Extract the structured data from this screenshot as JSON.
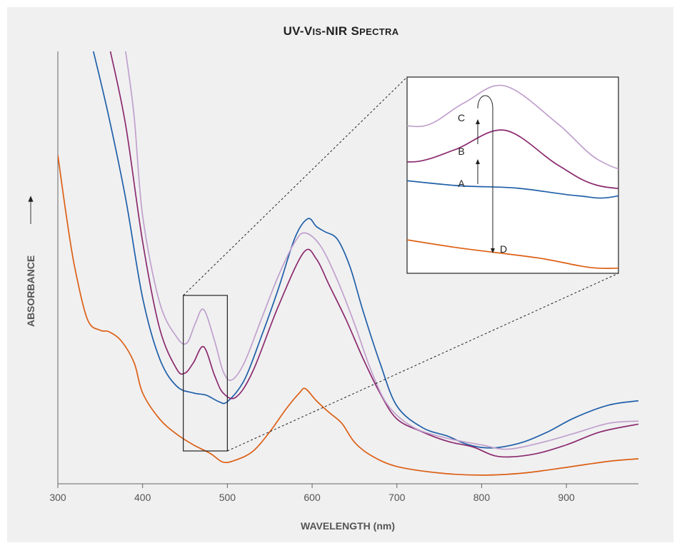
{
  "chart_data": {
    "type": "line",
    "title_main": "UV-V",
    "title_sc1": "IS",
    "title_mid": "-NIR S",
    "title_sc2": "PECTRA",
    "xlabel": "WAVELENGTH",
    "xlabel_unit": "(nm)",
    "ylabel": "ABSORBANCE",
    "xlim": [
      300,
      985
    ],
    "ylim": [
      0,
      1
    ],
    "x_ticks": [
      300,
      400,
      500,
      600,
      700,
      800,
      900
    ],
    "grid": false,
    "colors": {
      "A": "#1f5fa8",
      "B": "#8b2a6e",
      "C": "#c0a0cc",
      "D": "#dc5f14"
    },
    "series": [
      {
        "name": "A",
        "x": [
          342,
          360,
          380,
          400,
          420,
          440,
          460,
          475,
          490,
          500,
          520,
          540,
          560,
          580,
          595,
          605,
          615,
          630,
          645,
          660,
          680,
          700,
          730,
          760,
          780,
          800,
          820,
          850,
          880,
          910,
          950,
          985
        ],
        "y": [
          1.0,
          0.85,
          0.66,
          0.43,
          0.29,
          0.226,
          0.21,
          0.205,
          0.19,
          0.19,
          0.24,
          0.34,
          0.45,
          0.57,
          0.613,
          0.595,
          0.583,
          0.565,
          0.5,
          0.4,
          0.28,
          0.18,
          0.13,
          0.11,
          0.093,
          0.084,
          0.084,
          0.097,
          0.122,
          0.153,
          0.182,
          0.192
        ]
      },
      {
        "name": "B",
        "x": [
          362,
          380,
          400,
          420,
          440,
          450,
          460,
          472,
          485,
          495,
          510,
          530,
          560,
          590,
          605,
          620,
          640,
          660,
          680,
          700,
          730,
          760,
          790,
          820,
          860,
          900,
          940,
          985
        ],
        "y": [
          1.0,
          0.83,
          0.56,
          0.36,
          0.266,
          0.256,
          0.28,
          0.317,
          0.25,
          0.21,
          0.2,
          0.26,
          0.41,
          0.535,
          0.52,
          0.46,
          0.38,
          0.29,
          0.21,
          0.15,
          0.12,
          0.098,
          0.085,
          0.063,
          0.068,
          0.09,
          0.12,
          0.138
        ]
      },
      {
        "name": "C",
        "x": [
          380,
          390,
          400,
          420,
          440,
          452,
          462,
          472,
          485,
          495,
          505,
          520,
          540,
          560,
          580,
          592,
          610,
          630,
          650,
          670,
          690,
          720,
          760,
          800,
          830,
          870,
          910,
          950,
          985
        ],
        "y": [
          1.0,
          0.85,
          0.62,
          0.42,
          0.34,
          0.325,
          0.37,
          0.403,
          0.33,
          0.26,
          0.24,
          0.28,
          0.38,
          0.48,
          0.56,
          0.58,
          0.55,
          0.47,
          0.37,
          0.26,
          0.18,
          0.13,
          0.105,
          0.09,
          0.08,
          0.095,
          0.117,
          0.14,
          0.145
        ]
      },
      {
        "name": "D",
        "x": [
          300,
          310,
          320,
          335,
          350,
          360,
          375,
          390,
          400,
          420,
          440,
          460,
          480,
          495,
          510,
          530,
          550,
          570,
          585,
          592,
          605,
          620,
          635,
          650,
          670,
          700,
          750,
          800,
          850,
          900,
          950,
          985
        ],
        "y": [
          0.76,
          0.62,
          0.5,
          0.38,
          0.355,
          0.352,
          0.33,
          0.28,
          0.21,
          0.15,
          0.115,
          0.09,
          0.07,
          0.05,
          0.055,
          0.075,
          0.12,
          0.175,
          0.21,
          0.22,
          0.192,
          0.165,
          0.14,
          0.096,
          0.065,
          0.04,
          0.025,
          0.02,
          0.025,
          0.038,
          0.052,
          0.058
        ]
      }
    ],
    "inset": {
      "labels": [
        "A",
        "B",
        "C",
        "D"
      ]
    }
  }
}
